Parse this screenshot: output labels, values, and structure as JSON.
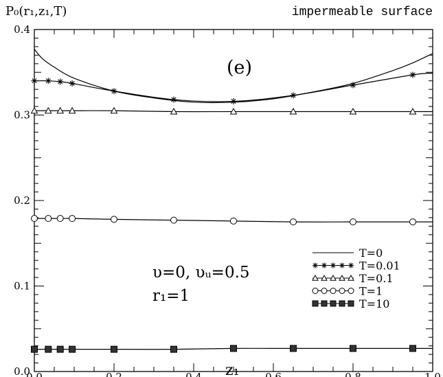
{
  "chart_data": {
    "type": "line",
    "title": "impermeable surface",
    "panel_label": "(e)",
    "ylabel": "P₀(r₁,z₁,T)",
    "xlabel": "z₁",
    "xlim": [
      0.0,
      1.0
    ],
    "ylim": [
      0.0,
      0.4
    ],
    "x_ticks": [
      "0.0",
      "0.2",
      "0.4",
      "0.6",
      "0.8",
      "1.0"
    ],
    "y_ticks": [
      "0.0",
      "0.1",
      "0.2",
      "0.3",
      "0.4"
    ],
    "grid": false,
    "legend_position": "bottom-right",
    "annotation_lines": [
      "υ=0,  υᵤ=0.5",
      "r₁=1"
    ],
    "series": [
      {
        "name": "T=0",
        "marker": "none",
        "x": [
          0.0,
          0.02,
          0.05,
          0.1,
          0.2,
          0.3,
          0.4,
          0.5,
          0.6,
          0.7,
          0.8,
          0.9,
          0.95,
          1.0
        ],
        "y": [
          0.377,
          0.366,
          0.356,
          0.343,
          0.328,
          0.32,
          0.315,
          0.315,
          0.319,
          0.327,
          0.337,
          0.352,
          0.361,
          0.372
        ]
      },
      {
        "name": "T=0.01",
        "marker": "star",
        "x": [
          0.0,
          0.035,
          0.065,
          0.095,
          0.2,
          0.35,
          0.5,
          0.65,
          0.8,
          0.95,
          1.0
        ],
        "y": [
          0.34,
          0.34,
          0.339,
          0.337,
          0.328,
          0.318,
          0.316,
          0.323,
          0.335,
          0.347,
          0.349
        ]
      },
      {
        "name": "T=0.1",
        "marker": "triangle",
        "x": [
          0.0,
          0.035,
          0.065,
          0.095,
          0.2,
          0.35,
          0.5,
          0.65,
          0.8,
          0.95,
          1.0
        ],
        "y": [
          0.305,
          0.305,
          0.305,
          0.305,
          0.305,
          0.304,
          0.304,
          0.304,
          0.304,
          0.304,
          0.304
        ]
      },
      {
        "name": "T=1",
        "marker": "circle",
        "x": [
          0.0,
          0.035,
          0.065,
          0.095,
          0.2,
          0.35,
          0.5,
          0.65,
          0.8,
          0.95,
          1.0
        ],
        "y": [
          0.179,
          0.179,
          0.179,
          0.179,
          0.178,
          0.177,
          0.176,
          0.175,
          0.175,
          0.175,
          0.175
        ]
      },
      {
        "name": "T=10",
        "marker": "square",
        "x": [
          0.0,
          0.035,
          0.065,
          0.095,
          0.2,
          0.35,
          0.5,
          0.65,
          0.8,
          0.95,
          1.0
        ],
        "y": [
          0.026,
          0.026,
          0.026,
          0.026,
          0.026,
          0.026,
          0.027,
          0.027,
          0.027,
          0.027,
          0.027
        ]
      }
    ]
  }
}
